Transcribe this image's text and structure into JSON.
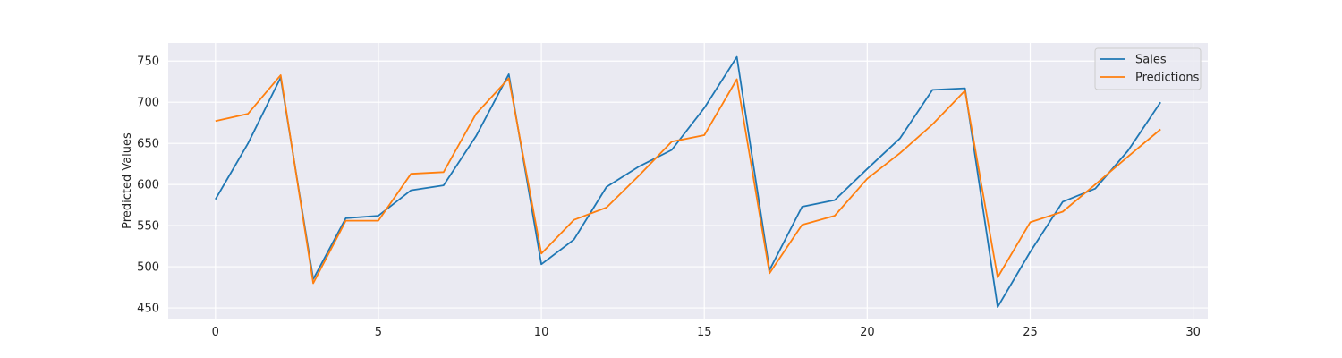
{
  "chart_data": {
    "type": "line",
    "x": [
      0,
      1,
      2,
      3,
      4,
      5,
      6,
      7,
      8,
      9,
      10,
      11,
      12,
      13,
      14,
      15,
      16,
      17,
      18,
      19,
      20,
      21,
      22,
      23,
      24,
      25,
      26,
      27,
      28,
      29
    ],
    "series": [
      {
        "name": "Sales",
        "color": "#1f77b4",
        "values": [
          582,
          650,
          730,
          485,
          559,
          562,
          593,
          599,
          659,
          734,
          503,
          533,
          597,
          622,
          642,
          693,
          755,
          496,
          573,
          581,
          619,
          656,
          715,
          717,
          451,
          518,
          579,
          595,
          641,
          700
        ]
      },
      {
        "name": "Predictions",
        "color": "#ff7f0e",
        "values": [
          677,
          686,
          733,
          480,
          556,
          556,
          613,
          615,
          686,
          729,
          516,
          557,
          572,
          611,
          652,
          660,
          728,
          492,
          551,
          562,
          607,
          638,
          673,
          714,
          487,
          554,
          567,
          600,
          634,
          667
        ]
      }
    ],
    "xlabel": "",
    "ylabel": "Predicted Values",
    "xlim": [
      -1.45,
      30.45
    ],
    "ylim": [
      437,
      772
    ],
    "xticks": [
      0,
      5,
      10,
      15,
      20,
      25,
      30
    ],
    "yticks": [
      450,
      500,
      550,
      600,
      650,
      700,
      750
    ],
    "grid": true,
    "legend_position": "top-right",
    "style": "seaborn-darkgrid"
  }
}
